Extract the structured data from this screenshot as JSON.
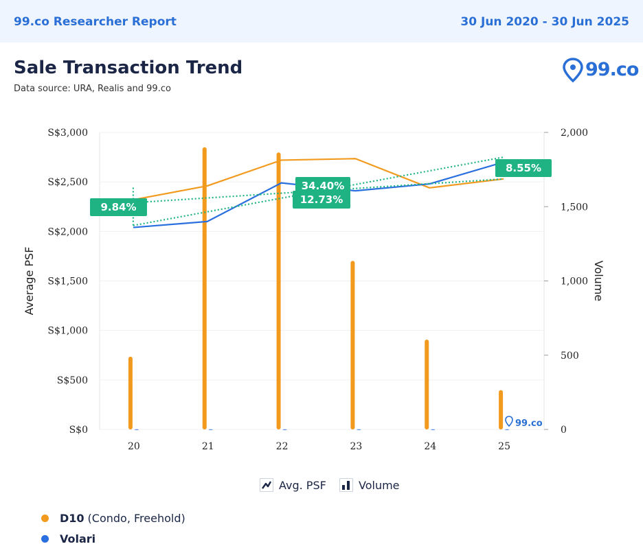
{
  "header": {
    "report_name": "99.co Researcher Report",
    "date_range": "30 Jun 2020 - 30 Jun 2025"
  },
  "page": {
    "title": "Sale Transaction Trend",
    "source": "Data source: URA, Realis and 99.co",
    "logo_text": "99.co",
    "watermark_text": "99.co"
  },
  "legend_toggles": {
    "psf_label": "Avg. PSF",
    "volume_label": "Volume"
  },
  "series_legend": [
    {
      "name": "D10",
      "detail": "(Condo, Freehold)",
      "color": "#f29a1d"
    },
    {
      "name": "Volari",
      "detail": "",
      "color": "#2a6fe0"
    }
  ],
  "chart_data": {
    "type": "bar+line",
    "x": [
      "20",
      "21",
      "22",
      "23",
      "24",
      "25"
    ],
    "ylabel": "Average PSF",
    "y2label": "Volume",
    "ylim": [
      0,
      3000
    ],
    "y2lim": [
      0,
      2000
    ],
    "yticks": [
      "S$0",
      "S$500",
      "S$1,000",
      "S$1,500",
      "S$2,000",
      "S$2,500",
      "S$3,000"
    ],
    "y2ticks": [
      "0",
      "500",
      "1,000",
      "1,500",
      "2,000"
    ],
    "grid": true,
    "bars": [
      {
        "name": "D10",
        "color": "#f29a1d",
        "values": [
          490,
          1900,
          1865,
          1135,
          605,
          265
        ]
      },
      {
        "name": "Volari",
        "color": "#2a6fe0",
        "values": [
          1,
          1,
          1,
          1,
          1,
          1
        ]
      }
    ],
    "lines": [
      {
        "name": "D10",
        "color": "#f29a1d",
        "values": [
          2320,
          2460,
          2720,
          2735,
          2440,
          2530
        ]
      },
      {
        "name": "Volari",
        "color": "#2a6fe0",
        "values": [
          2040,
          2100,
          2490,
          2410,
          2480,
          2700
        ]
      }
    ],
    "trendlines": [
      {
        "color": "#1fb383",
        "from": 2290,
        "to": 2530
      },
      {
        "color": "#1fb383",
        "from": 2060,
        "to": 2750
      }
    ],
    "annotations": [
      {
        "label": "9.84%",
        "color": "#1fb383"
      },
      {
        "label": "34.40%",
        "color": "#1fb383"
      },
      {
        "label": "12.73%",
        "color": "#1fb383"
      },
      {
        "label": "8.55%",
        "color": "#1fb383"
      }
    ]
  }
}
